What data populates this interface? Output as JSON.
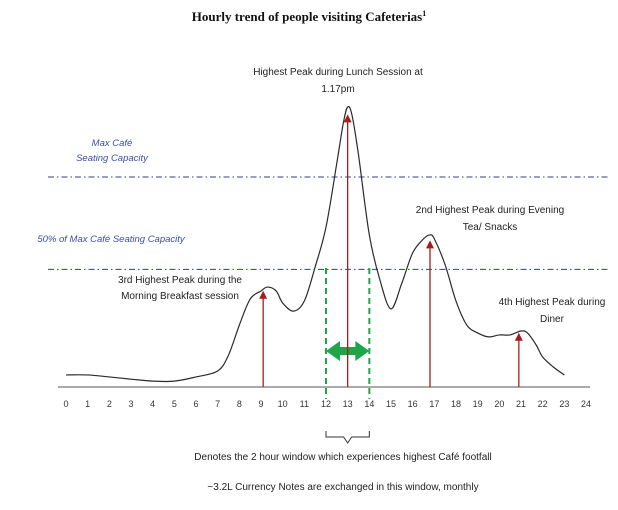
{
  "chart_data": {
    "type": "line",
    "title": "Hourly trend of people visiting Cafeterias",
    "title_footnote": "1",
    "x_ticks": [
      "0",
      "1",
      "2",
      "3",
      "4",
      "5",
      "6",
      "7",
      "8",
      "9",
      "10",
      "11",
      "12",
      "13",
      "14",
      "15",
      "16",
      "17",
      "18",
      "19",
      "20",
      "21",
      "22",
      "23",
      "24"
    ],
    "xlim": [
      0,
      24
    ],
    "ylim": [
      0,
      100
    ],
    "series": [
      {
        "x": [
          0,
          1,
          2,
          3,
          4,
          5,
          6,
          7,
          7.5,
          8,
          8.5,
          9,
          9.3,
          9.7,
          10,
          10.5,
          11,
          11.5,
          12,
          12.5,
          12.8,
          13,
          13.2,
          13.5,
          14,
          14.5,
          15,
          15.5,
          16,
          16.5,
          16.8,
          17,
          17.5,
          18,
          18.5,
          19,
          19.5,
          20,
          20.5,
          21,
          21.3,
          21.7,
          22,
          22.5,
          23
        ],
        "y": [
          4.3,
          4.3,
          3.6,
          2.8,
          2.1,
          2.1,
          3.6,
          5.7,
          11.4,
          22.1,
          31.4,
          34.3,
          35.7,
          34.3,
          30,
          27.1,
          30.7,
          42.9,
          57.1,
          80,
          94.3,
          100,
          97.1,
          82.9,
          54.3,
          37.9,
          27.9,
          37.1,
          47.9,
          52.9,
          54.3,
          52.9,
          43.6,
          30.7,
          22.1,
          19.3,
          17.9,
          18.6,
          18.6,
          20,
          19.3,
          15,
          10.7,
          7.1,
          4.3
        ]
      }
    ],
    "reference_lines": [
      {
        "label_lines": [
          "Max Café",
          "Seating Capacity"
        ],
        "y": 75
      },
      {
        "label_lines": [
          "50% of Max Café Seating Capacity"
        ],
        "y": 42
      }
    ],
    "peaks": [
      {
        "x": 9.1,
        "y": 34,
        "label_lines": [
          "3rd Highest Peak during the",
          "Morning Breakfast  session"
        ]
      },
      {
        "x": 13.0,
        "y": 97,
        "label_lines": [
          "Highest Peak during Lunch Session at",
          "1.17pm"
        ]
      },
      {
        "x": 16.8,
        "y": 52,
        "label_lines": [
          "2nd  Highest Peak during Evening",
          "Tea/ Snacks"
        ]
      },
      {
        "x": 20.9,
        "y": 19,
        "label_lines": [
          "4th Highest Peak during",
          "Diner"
        ]
      }
    ],
    "window": {
      "start": 12,
      "end": 14
    },
    "notes": [
      "Denotes  the 2 hour window which experiences highest Café footfall",
      "~3.2L Currency Notes are exchanged  in this window,  monthly"
    ],
    "colors": {
      "line": "#2b2b2b",
      "reference": "#2f3f8f",
      "peak_arrow": "#a51c1c",
      "window": "#1fa64a",
      "axis": "#555555",
      "reference_label": "#3a4fa0"
    }
  }
}
